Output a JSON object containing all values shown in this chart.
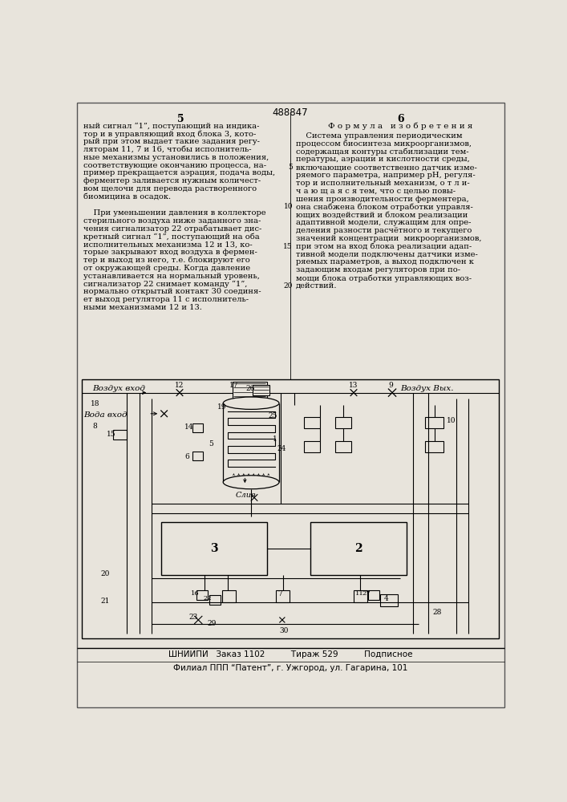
{
  "bg_color": "#e8e4dc",
  "title_number": "488847",
  "col_left_number": "5",
  "col_right_number": "6",
  "col_right_header": "Ф о р м у л а   и з о б р е т е н и я",
  "col_left_text": [
    "ный сигнал “1”, поступающий на индика-",
    "тор и в управляющий вход блока 3, кото-",
    "рый при этом выдает такие задания регу-",
    "ляторам 11, 7 и 16, чтобы исполнитель-",
    "ные механизмы установились в положения,",
    "соответствующие окончанию процесса, на-",
    "пример прекращается аэрация, подача воды,",
    "ферментер заливается нужным количест-",
    "вом щелочи для перевода растворенного",
    "биомицина в осадок.",
    "",
    "    При уменьшении давления в коллекторе",
    "стерильного воздуха ниже заданного зна-",
    "чения сигнализатор 22 отрабатывает дис-",
    "кретный сигнал “1”, поступающий на оба",
    "исполнительных механизма 12 и 13, ко-",
    "торые закрывают вход воздуха в фермен-",
    "тер и выход из него, т.е. блокируют его",
    "от окружающей среды. Когда давление",
    "устанавливается на нормальный уровень,",
    "сигнализатор 22 снимает команду “1”,",
    "нормально открытый контакт 30 соединя-",
    "ет выход регулятора 11 с исполнитель-",
    "ными механизмами 12 и 13."
  ],
  "col_right_text": [
    "    Система управления периодическим",
    "процессом биосинтеза микроорганизмов,",
    "содержащая контуры стабилизации тем-",
    "пературы, аэрации и кислотности среды,",
    "включающие соответственно датчик изме-",
    "ряемого параметра, например рН, регуля-",
    "тор и исполнительный механизм, о т л и-",
    "ч а ю щ а я с я тем, что с целью повы-",
    "шения производительности ферментера,",
    "она снабжена блоком отработки управля-",
    "ющих воздействий и блоком реализации",
    "адаптивной модели, служащим для опре-",
    "деления разности расчётного и текущего",
    "значений концентрации  микроорганизмов,",
    "при этом на вход блока реализации адап-",
    "тивной модели подключены датчики изме-",
    "ряемых параметров, а выход подключен к",
    "задающим входам регуляторов при по-",
    "мощи блока отработки управляющих воз-",
    "действий."
  ],
  "line_numbers_right": [
    "5",
    "10",
    "15",
    "20"
  ],
  "footer_line1": "ШНИИПИ   Заказ 1102          Тираж 529          Подписное",
  "footer_line2": "Филиал ППП “Патент”, г. Ужгород, ул. Гагарина, 101"
}
